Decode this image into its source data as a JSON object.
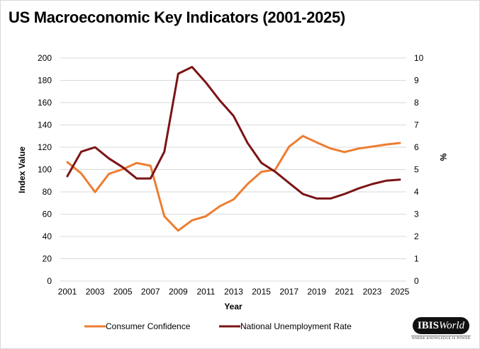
{
  "chart_data": {
    "type": "line",
    "title": "US Macroeconomic Key Indicators (2001-2025)",
    "xlabel": "Year",
    "ylabel": "Index Value",
    "y2label": "%",
    "x": [
      2001,
      2002,
      2003,
      2004,
      2005,
      2006,
      2007,
      2008,
      2009,
      2010,
      2011,
      2012,
      2013,
      2014,
      2015,
      2016,
      2017,
      2018,
      2019,
      2020,
      2021,
      2022,
      2023,
      2024,
      2025
    ],
    "x_ticks": [
      "2001",
      "2003",
      "2005",
      "2007",
      "2009",
      "2011",
      "2013",
      "2015",
      "2017",
      "2019",
      "2021",
      "2023",
      "2025"
    ],
    "ylim": [
      0,
      200
    ],
    "y_ticks": [
      "0",
      "20",
      "40",
      "60",
      "80",
      "100",
      "120",
      "140",
      "160",
      "180",
      "200"
    ],
    "y2lim": [
      0,
      10
    ],
    "y2_ticks": [
      "0",
      "1",
      "2",
      "3",
      "4",
      "5",
      "6",
      "7",
      "8",
      "9",
      "10"
    ],
    "grid": true,
    "legend_position": "bottom",
    "series": [
      {
        "name": "Consumer Confidence",
        "axis": "left",
        "color": "#ED7D31",
        "values": [
          106.6,
          96.6,
          79.8,
          96.1,
          100.3,
          105.9,
          103.4,
          58.0,
          45.2,
          54.5,
          58.1,
          67.1,
          73.2,
          86.9,
          98.0,
          99.8,
          120.5,
          130.1,
          124.3,
          118.9,
          115.7,
          118.8,
          120.6,
          122.5,
          123.8
        ]
      },
      {
        "name": "National Unemployment Rate",
        "axis": "right",
        "color": "#7B1416",
        "values": [
          4.7,
          5.8,
          6.0,
          5.5,
          5.1,
          4.6,
          4.6,
          5.8,
          9.3,
          9.6,
          8.9,
          8.1,
          7.4,
          6.2,
          5.3,
          4.9,
          4.4,
          3.9,
          3.7,
          3.7,
          3.9,
          4.15,
          4.35,
          4.5,
          4.55
        ]
      }
    ]
  },
  "branding": {
    "logo_main": "IBIS",
    "logo_italic": "World",
    "logo_tagline": "WHERE KNOWLEDGE IS POWER"
  }
}
